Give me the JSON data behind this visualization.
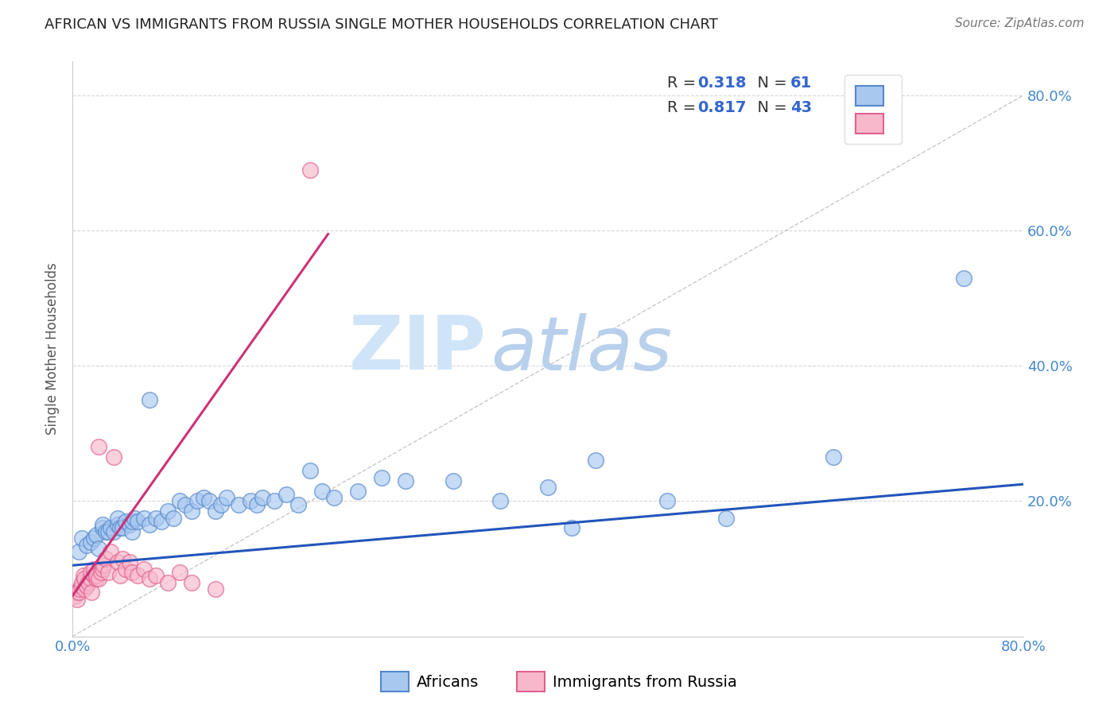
{
  "title": "AFRICAN VS IMMIGRANTS FROM RUSSIA SINGLE MOTHER HOUSEHOLDS CORRELATION CHART",
  "source": "Source: ZipAtlas.com",
  "ylabel": "Single Mother Households",
  "xlim": [
    0,
    0.8
  ],
  "ylim": [
    0,
    0.85
  ],
  "xticks": [
    0.0,
    0.2,
    0.4,
    0.6,
    0.8
  ],
  "yticks": [
    0.0,
    0.2,
    0.4,
    0.6,
    0.8
  ],
  "ytick_labels_right": [
    "",
    "20.0%",
    "40.0%",
    "60.0%",
    "80.0%"
  ],
  "xtick_labels_shown": [
    "0.0%",
    "",
    "",
    "",
    "80.0%"
  ],
  "series": [
    {
      "name": "Africans",
      "R": 0.318,
      "N": 61,
      "dot_color": "#a8c8f0",
      "dot_edge_color": "#5588cc",
      "line_color": "#2255bb",
      "x": [
        0.005,
        0.008,
        0.012,
        0.015,
        0.018,
        0.02,
        0.022,
        0.025,
        0.025,
        0.028,
        0.03,
        0.032,
        0.035,
        0.038,
        0.038,
        0.04,
        0.042,
        0.045,
        0.048,
        0.05,
        0.05,
        0.052,
        0.055,
        0.06,
        0.065,
        0.065,
        0.07,
        0.075,
        0.08,
        0.085,
        0.09,
        0.095,
        0.1,
        0.105,
        0.11,
        0.115,
        0.12,
        0.125,
        0.13,
        0.14,
        0.15,
        0.155,
        0.16,
        0.17,
        0.18,
        0.19,
        0.2,
        0.21,
        0.22,
        0.24,
        0.26,
        0.28,
        0.32,
        0.36,
        0.4,
        0.42,
        0.44,
        0.5,
        0.55,
        0.64,
        0.75
      ],
      "y": [
        0.125,
        0.145,
        0.135,
        0.14,
        0.145,
        0.15,
        0.13,
        0.16,
        0.165,
        0.155,
        0.155,
        0.16,
        0.155,
        0.165,
        0.175,
        0.16,
        0.16,
        0.17,
        0.165,
        0.155,
        0.17,
        0.175,
        0.17,
        0.175,
        0.165,
        0.35,
        0.175,
        0.17,
        0.185,
        0.175,
        0.2,
        0.195,
        0.185,
        0.2,
        0.205,
        0.2,
        0.185,
        0.195,
        0.205,
        0.195,
        0.2,
        0.195,
        0.205,
        0.2,
        0.21,
        0.195,
        0.245,
        0.215,
        0.205,
        0.215,
        0.235,
        0.23,
        0.23,
        0.2,
        0.22,
        0.16,
        0.26,
        0.2,
        0.175,
        0.265,
        0.53
      ],
      "trendline_x": [
        0.0,
        0.8
      ],
      "trendline_y": [
        0.105,
        0.225
      ]
    },
    {
      "name": "Immigrants from Russia",
      "R": 0.817,
      "N": 43,
      "dot_color": "#f8b8cc",
      "dot_edge_color": "#e06090",
      "line_color": "#cc3377",
      "x": [
        0.002,
        0.003,
        0.004,
        0.005,
        0.006,
        0.007,
        0.008,
        0.009,
        0.01,
        0.01,
        0.012,
        0.013,
        0.015,
        0.015,
        0.016,
        0.018,
        0.018,
        0.02,
        0.02,
        0.022,
        0.022,
        0.024,
        0.025,
        0.026,
        0.028,
        0.03,
        0.032,
        0.035,
        0.038,
        0.04,
        0.042,
        0.045,
        0.048,
        0.05,
        0.055,
        0.06,
        0.065,
        0.07,
        0.08,
        0.09,
        0.1,
        0.12,
        0.2
      ],
      "y": [
        0.06,
        0.065,
        0.055,
        0.065,
        0.07,
        0.075,
        0.08,
        0.09,
        0.07,
        0.085,
        0.075,
        0.08,
        0.085,
        0.095,
        0.065,
        0.09,
        0.1,
        0.085,
        0.09,
        0.085,
        0.28,
        0.095,
        0.1,
        0.105,
        0.115,
        0.095,
        0.125,
        0.265,
        0.11,
        0.09,
        0.115,
        0.1,
        0.11,
        0.095,
        0.09,
        0.1,
        0.085,
        0.09,
        0.08,
        0.095,
        0.08,
        0.07,
        0.69
      ],
      "trendline_x": [
        0.0,
        0.215
      ],
      "trendline_y": [
        0.06,
        0.595
      ]
    }
  ],
  "legend_entries": [
    {
      "label": "Africans",
      "color": "#a8c8f0",
      "edge_color": "#5588cc"
    },
    {
      "label": "Immigrants from Russia",
      "color": "#f8b8cc",
      "edge_color": "#e06090"
    }
  ],
  "watermark_zip": "ZIP",
  "watermark_atlas": "atlas",
  "watermark_color": "#d0e4f8",
  "background_color": "#ffffff",
  "grid_color": "#cccccc",
  "title_fontsize": 13,
  "tick_label_color": "#4488cc",
  "tick_label_fontsize": 13
}
